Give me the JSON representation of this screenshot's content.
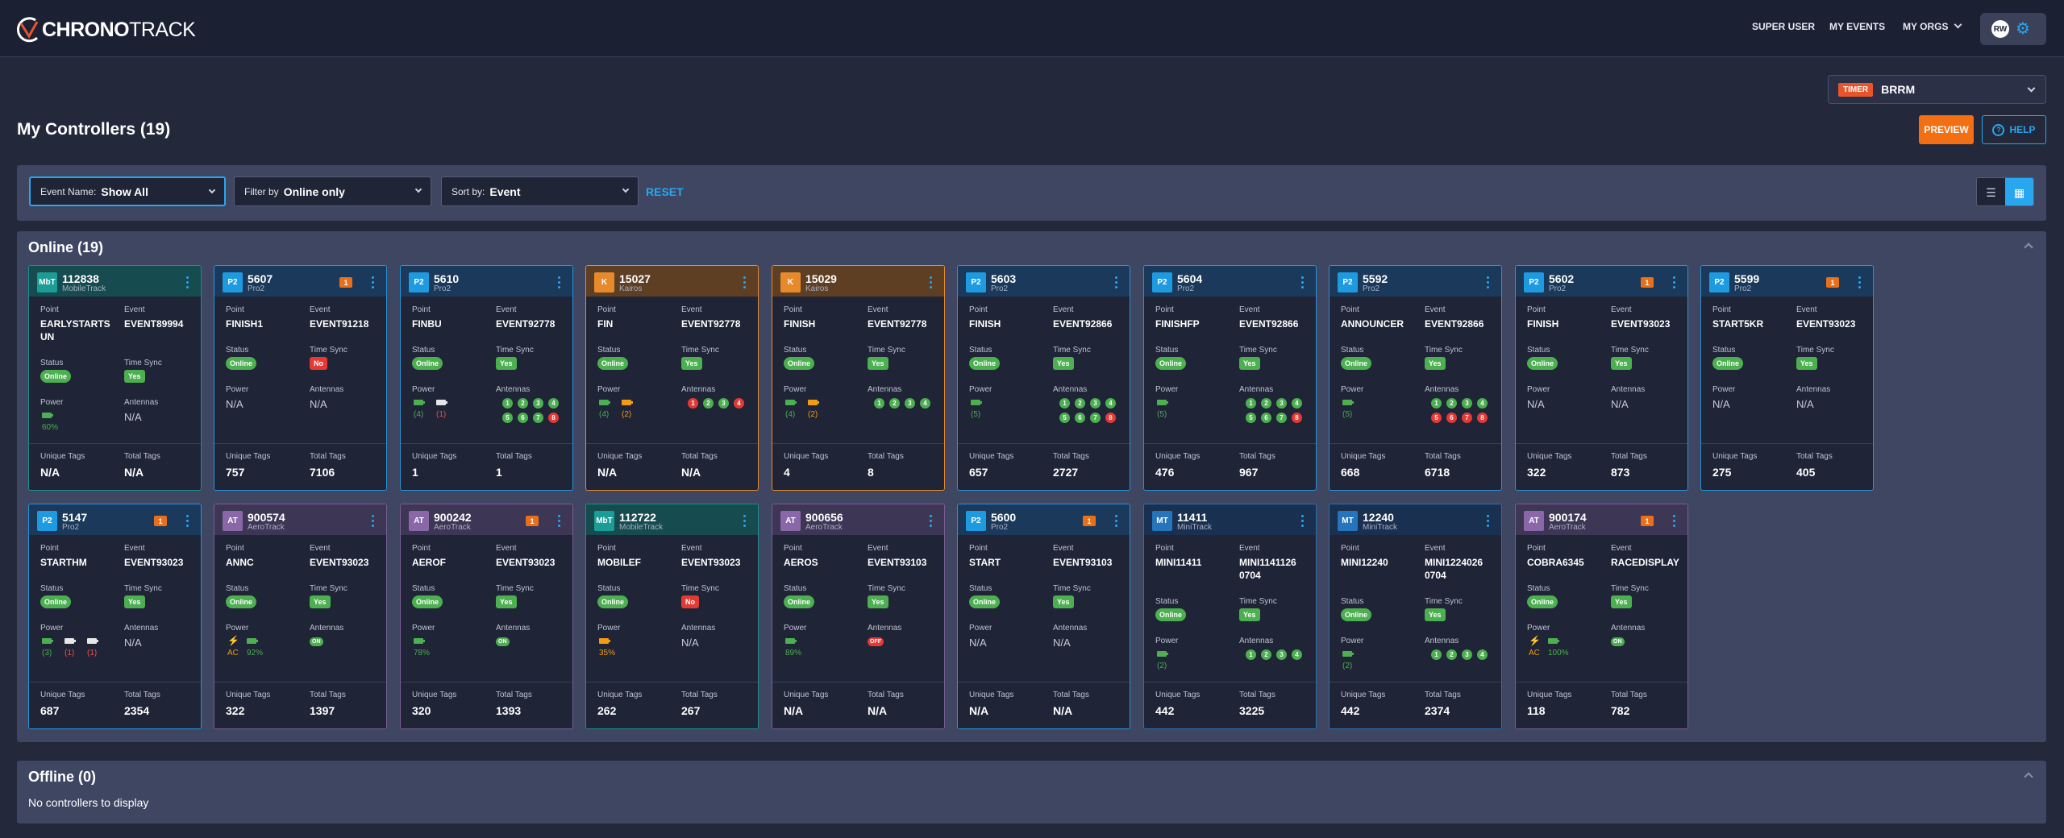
{
  "header": {
    "logo_bold": "CHRONO",
    "logo_light": "TRACK",
    "nav": [
      "SUPER USER",
      "MY EVENTS",
      "MY ORGS"
    ],
    "user_initials": "RW",
    "settings_icon": "gear-icon"
  },
  "timer": {
    "badge": "TIMER",
    "value": "BRRM"
  },
  "page": {
    "title": "My Controllers (19)",
    "preview": "PREVIEW",
    "help": "HELP"
  },
  "filters": {
    "event_label": "Event Name:",
    "event_value": "Show All",
    "filter_label": "Filter by",
    "filter_value": "Online only",
    "sort_label": "Sort by:",
    "sort_value": "Event",
    "reset": "RESET"
  },
  "labels": {
    "point": "Point",
    "event": "Event",
    "status": "Status",
    "time_sync": "Time Sync",
    "power": "Power",
    "antennas": "Antennas",
    "unique_tags": "Unique Tags",
    "total_tags": "Total Tags",
    "na": "N/A",
    "online": "Online",
    "yes": "Yes",
    "no": "No"
  },
  "online": {
    "title": "Online (19)"
  },
  "offline": {
    "title": "Offline (0)",
    "empty": "No controllers to display"
  },
  "colors": {
    "accent": "#28a7f0",
    "online": "#4caf50",
    "error": "#e53935",
    "warning": "#e8701a"
  },
  "cards": [
    {
      "type": "mobile",
      "abbr": "MbT",
      "id": "112838",
      "model": "MobileTrack",
      "alert": "",
      "point": "EARLYSTARTS UN",
      "event": "EVENT89994",
      "timesync": "Yes",
      "unique": "N/A",
      "total": "N/A"
    },
    {
      "type": "pro2",
      "abbr": "P2",
      "id": "5607",
      "model": "Pro2",
      "alert": "1",
      "point": "FINISH1",
      "event": "EVENT91218",
      "timesync": "No",
      "unique": "757",
      "total": "7106"
    },
    {
      "type": "pro2",
      "abbr": "P2",
      "id": "5610",
      "model": "Pro2",
      "alert": "",
      "point": "FINBU",
      "event": "EVENT92778",
      "timesync": "Yes",
      "unique": "1",
      "total": "1"
    },
    {
      "type": "kairos",
      "abbr": "K",
      "id": "15027",
      "model": "Kairos",
      "alert": "",
      "point": "FIN",
      "event": "EVENT92778",
      "timesync": "Yes",
      "unique": "N/A",
      "total": "N/A"
    },
    {
      "type": "kairos",
      "abbr": "K",
      "id": "15029",
      "model": "Kairos",
      "alert": "",
      "point": "FINISH",
      "event": "EVENT92778",
      "timesync": "Yes",
      "unique": "4",
      "total": "8"
    },
    {
      "type": "pro2",
      "abbr": "P2",
      "id": "5603",
      "model": "Pro2",
      "alert": "",
      "point": "FINISH",
      "event": "EVENT92866",
      "timesync": "Yes",
      "unique": "657",
      "total": "2727"
    },
    {
      "type": "pro2",
      "abbr": "P2",
      "id": "5604",
      "model": "Pro2",
      "alert": "",
      "point": "FINISHFP",
      "event": "EVENT92866",
      "timesync": "Yes",
      "unique": "476",
      "total": "967"
    },
    {
      "type": "pro2",
      "abbr": "P2",
      "id": "5592",
      "model": "Pro2",
      "alert": "",
      "point": "ANNOUNCER",
      "event": "EVENT92866",
      "timesync": "Yes",
      "unique": "668",
      "total": "6718"
    },
    {
      "type": "pro2",
      "abbr": "P2",
      "id": "5602",
      "model": "Pro2",
      "alert": "1",
      "point": "FINISH",
      "event": "EVENT93023",
      "timesync": "Yes",
      "unique": "322",
      "total": "873"
    },
    {
      "type": "pro2",
      "abbr": "P2",
      "id": "5599",
      "model": "Pro2",
      "alert": "1",
      "point": "START5KR",
      "event": "EVENT93023",
      "timesync": "Yes",
      "unique": "275",
      "total": "405"
    },
    {
      "type": "pro2",
      "abbr": "P2",
      "id": "5147",
      "model": "Pro2",
      "alert": "1",
      "point": "STARTHM",
      "event": "EVENT93023",
      "timesync": "Yes",
      "unique": "687",
      "total": "2354"
    },
    {
      "type": "aero",
      "abbr": "AT",
      "id": "900574",
      "model": "AeroTrack",
      "alert": "",
      "point": "ANNC",
      "event": "EVENT93023",
      "timesync": "Yes",
      "unique": "322",
      "total": "1397"
    },
    {
      "type": "aero",
      "abbr": "AT",
      "id": "900242",
      "model": "AeroTrack",
      "alert": "1",
      "point": "AEROF",
      "event": "EVENT93023",
      "timesync": "Yes",
      "unique": "320",
      "total": "1393"
    },
    {
      "type": "mobile",
      "abbr": "MbT",
      "id": "112722",
      "model": "MobileTrack",
      "alert": "",
      "point": "MOBILEF",
      "event": "EVENT93023",
      "timesync": "No",
      "unique": "262",
      "total": "267"
    },
    {
      "type": "aero",
      "abbr": "AT",
      "id": "900656",
      "model": "AeroTrack",
      "alert": "",
      "point": "AEROS",
      "event": "EVENT93103",
      "timesync": "Yes",
      "unique": "N/A",
      "total": "N/A"
    },
    {
      "type": "pro2",
      "abbr": "P2",
      "id": "5600",
      "model": "Pro2",
      "alert": "1",
      "point": "START",
      "event": "EVENT93103",
      "timesync": "Yes",
      "unique": "N/A",
      "total": "N/A"
    },
    {
      "type": "mini",
      "abbr": "MT",
      "id": "11411",
      "model": "MiniTrack",
      "alert": "",
      "point": "MINI11411",
      "event": "MINI1141126 0704",
      "timesync": "Yes",
      "unique": "442",
      "total": "3225"
    },
    {
      "type": "mini",
      "abbr": "MT",
      "id": "12240",
      "model": "MiniTrack",
      "alert": "",
      "point": "MINI12240",
      "event": "MINI1224026 0704",
      "timesync": "Yes",
      "unique": "442",
      "total": "2374"
    },
    {
      "type": "aero",
      "abbr": "AT",
      "id": "900174",
      "model": "AeroTrack",
      "alert": "1",
      "point": "COBRA6345",
      "event": "RACEDISPLAY",
      "timesync": "Yes",
      "unique": "118",
      "total": "782"
    }
  ],
  "power": {
    "c0": {
      "pct": "60%"
    },
    "c2": {
      "a": "(4)",
      "b": "(1)"
    },
    "c3": {
      "a": "(4)",
      "b": "(2)"
    },
    "c4": {
      "a": "(4)",
      "b": "(2)"
    },
    "c5": {
      "a": "(5)"
    },
    "c6": {
      "a": "(5)"
    },
    "c7": {
      "a": "(5)"
    },
    "c10": {
      "a": "(3)",
      "b": "(1)",
      "c": "(1)"
    },
    "c11": {
      "ac": "AC",
      "pct": "92%"
    },
    "c12": {
      "pct": "78%"
    },
    "c13": {
      "pct": "35%"
    },
    "c14": {
      "pct": "89%"
    },
    "c16": {
      "a": "(2)"
    },
    "c17": {
      "a": "(2)"
    },
    "c18": {
      "ac": "AC",
      "pct": "100%"
    }
  },
  "antennas": {
    "nums": [
      "1",
      "2",
      "3",
      "4",
      "5",
      "6",
      "7",
      "8"
    ],
    "on": "ON",
    "off": "OFF"
  }
}
